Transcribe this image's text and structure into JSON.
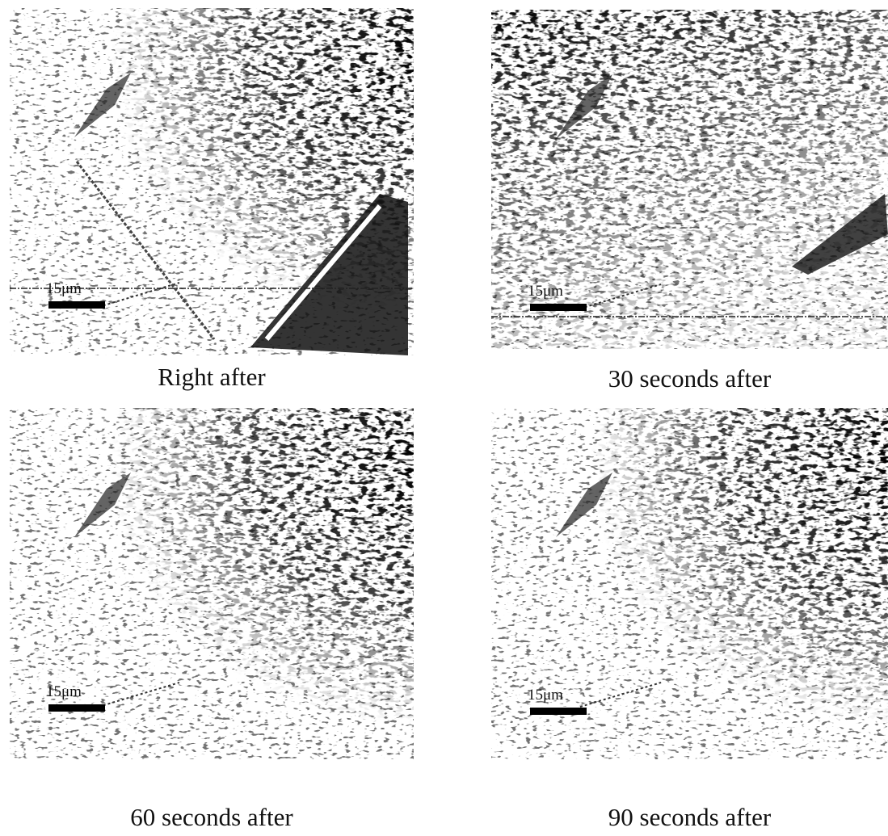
{
  "panels": [
    {
      "caption": "Right after",
      "scale_label": "15μm"
    },
    {
      "caption": "30 seconds after",
      "scale_label": "15μm"
    },
    {
      "caption": "60 seconds after",
      "scale_label": "15μm"
    },
    {
      "caption": "90 seconds after",
      "scale_label": "15μm"
    }
  ]
}
